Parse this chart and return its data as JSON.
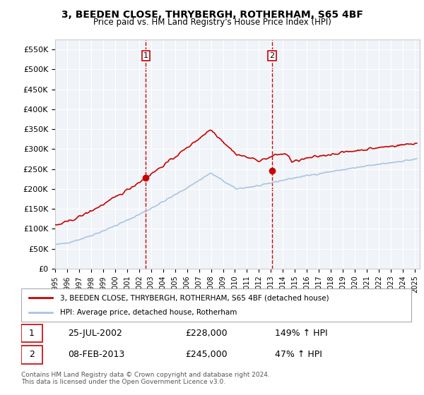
{
  "title": "3, BEEDEN CLOSE, THRYBERGH, ROTHERHAM, S65 4BF",
  "subtitle": "Price paid vs. HM Land Registry's House Price Index (HPI)",
  "legend_line1": "3, BEEDEN CLOSE, THRYBERGH, ROTHERHAM, S65 4BF (detached house)",
  "legend_line2": "HPI: Average price, detached house, Rotherham",
  "transaction1_label": "1",
  "transaction1_date": "25-JUL-2002",
  "transaction1_price": "£228,000",
  "transaction1_hpi": "149% ↑ HPI",
  "transaction2_label": "2",
  "transaction2_date": "08-FEB-2013",
  "transaction2_price": "£245,000",
  "transaction2_hpi": "47% ↑ HPI",
  "footer": "Contains HM Land Registry data © Crown copyright and database right 2024.\nThis data is licensed under the Open Government Licence v3.0.",
  "hpi_color": "#aac4e0",
  "price_color": "#cc0000",
  "dashed_color": "#cc0000",
  "marker_color1": "#cc0000",
  "marker_color2": "#cc0000",
  "ylim": [
    0,
    575000
  ],
  "yticks": [
    0,
    50000,
    100000,
    150000,
    200000,
    250000,
    300000,
    350000,
    400000,
    450000,
    500000,
    550000
  ],
  "background_color": "#ffffff",
  "plot_bg_color": "#f0f4f8"
}
